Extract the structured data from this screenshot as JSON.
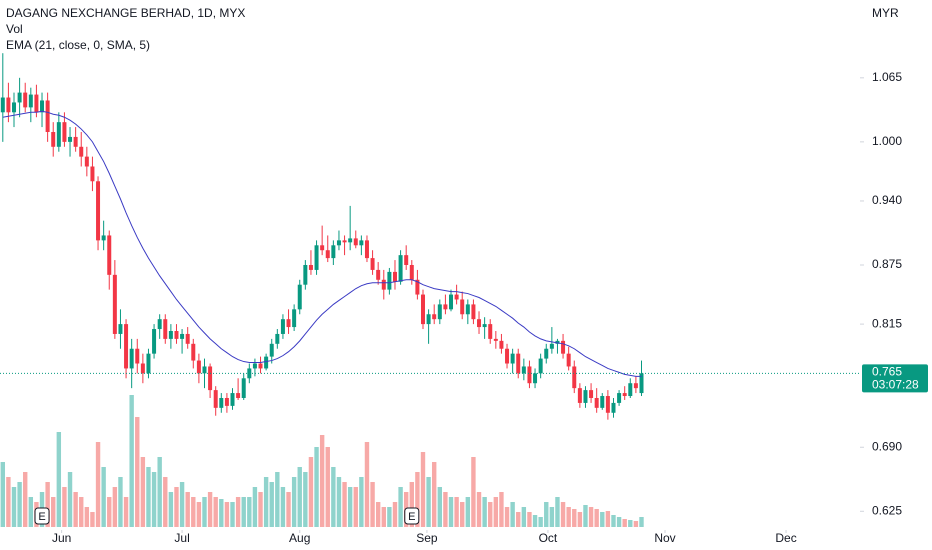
{
  "chart_data": {
    "type": "candlestick",
    "title": "DAGANG NEXCHANGE BERHAD, 1D, MYX",
    "volume_label": "Vol",
    "ema_label": "EMA (21, close, 0, SMA, 5)",
    "currency": "MYR",
    "last_price": 0.765,
    "countdown": "03:07:28",
    "up_color": "#089981",
    "down_color": "#f23645",
    "volume_up_color": "#8fd3cc",
    "volume_down_color": "#f7a9a7",
    "ema_color": "#3b3bc4",
    "ylim": [
      0.606,
      1.144
    ],
    "yticks": [
      0.625,
      {
        "value": 0.69,
        "label": "0.690"
      },
      0.815,
      0.875,
      {
        "value": 0.94,
        "label": "0.940"
      },
      {
        "value": 1.0,
        "label": "1.000"
      },
      1.065
    ],
    "xlim": [
      -0.5,
      153
    ],
    "xticks": [
      {
        "value": 10.5,
        "label": "Jun"
      },
      {
        "value": 32,
        "label": "Jul"
      },
      {
        "value": 53,
        "label": "Aug"
      },
      {
        "value": 75.7,
        "label": "Sep"
      },
      {
        "value": 97.3,
        "label": "Oct"
      },
      {
        "value": 118.2,
        "label": "Nov"
      },
      {
        "value": 139.8,
        "label": "Dec"
      }
    ],
    "vlim": [
      0,
      140
    ],
    "earnings": [
      {
        "index": 7,
        "label": "E"
      },
      {
        "index": 73,
        "label": "E"
      }
    ],
    "ohlc": [
      [
        1.03,
        1.09,
        1.0,
        1.045
      ],
      [
        1.045,
        1.06,
        1.02,
        1.03
      ],
      [
        1.03,
        1.05,
        1.015,
        1.04
      ],
      [
        1.04,
        1.065,
        1.025,
        1.05
      ],
      [
        1.05,
        1.06,
        1.03,
        1.035
      ],
      [
        1.035,
        1.055,
        1.02,
        1.048
      ],
      [
        1.048,
        1.058,
        1.025,
        1.03
      ],
      [
        1.03,
        1.05,
        1.015,
        1.042
      ],
      [
        1.042,
        1.05,
        1.0,
        1.01
      ],
      [
        1.01,
        1.02,
        0.985,
        0.995
      ],
      [
        0.995,
        1.03,
        0.99,
        1.02
      ],
      [
        1.02,
        1.03,
        0.995,
        1.0
      ],
      [
        1.0,
        1.015,
        0.985,
        1.005
      ],
      [
        1.005,
        1.015,
        0.99,
        0.995
      ],
      [
        0.995,
        1.01,
        0.975,
        0.985
      ],
      [
        0.985,
        0.995,
        0.965,
        0.975
      ],
      [
        0.975,
        0.985,
        0.95,
        0.96
      ],
      [
        0.96,
        0.965,
        0.89,
        0.9
      ],
      [
        0.9,
        0.92,
        0.89,
        0.905
      ],
      [
        0.905,
        0.91,
        0.85,
        0.865
      ],
      [
        0.865,
        0.88,
        0.8,
        0.805
      ],
      [
        0.805,
        0.83,
        0.79,
        0.815
      ],
      [
        0.815,
        0.82,
        0.76,
        0.77
      ],
      [
        0.77,
        0.8,
        0.75,
        0.79
      ],
      [
        0.79,
        0.8,
        0.765,
        0.775
      ],
      [
        0.775,
        0.785,
        0.755,
        0.765
      ],
      [
        0.765,
        0.79,
        0.76,
        0.785
      ],
      [
        0.785,
        0.815,
        0.78,
        0.81
      ],
      [
        0.81,
        0.825,
        0.8,
        0.82
      ],
      [
        0.82,
        0.825,
        0.795,
        0.8
      ],
      [
        0.8,
        0.815,
        0.79,
        0.808
      ],
      [
        0.808,
        0.815,
        0.795,
        0.8
      ],
      [
        0.8,
        0.81,
        0.785,
        0.805
      ],
      [
        0.805,
        0.812,
        0.79,
        0.795
      ],
      [
        0.795,
        0.8,
        0.77,
        0.778
      ],
      [
        0.778,
        0.785,
        0.755,
        0.765
      ],
      [
        0.765,
        0.78,
        0.75,
        0.772
      ],
      [
        0.772,
        0.775,
        0.74,
        0.748
      ],
      [
        0.748,
        0.752,
        0.722,
        0.73
      ],
      [
        0.73,
        0.745,
        0.725,
        0.74
      ],
      [
        0.74,
        0.745,
        0.725,
        0.732
      ],
      [
        0.732,
        0.75,
        0.728,
        0.745
      ],
      [
        0.745,
        0.76,
        0.738,
        0.74
      ],
      [
        0.74,
        0.765,
        0.738,
        0.76
      ],
      [
        0.76,
        0.775,
        0.755,
        0.77
      ],
      [
        0.77,
        0.78,
        0.762,
        0.775
      ],
      [
        0.775,
        0.782,
        0.765,
        0.77
      ],
      [
        0.77,
        0.785,
        0.768,
        0.782
      ],
      [
        0.782,
        0.8,
        0.775,
        0.795
      ],
      [
        0.795,
        0.81,
        0.79,
        0.805
      ],
      [
        0.805,
        0.825,
        0.8,
        0.82
      ],
      [
        0.82,
        0.83,
        0.805,
        0.812
      ],
      [
        0.812,
        0.835,
        0.808,
        0.83
      ],
      [
        0.83,
        0.86,
        0.825,
        0.855
      ],
      [
        0.855,
        0.88,
        0.85,
        0.875
      ],
      [
        0.875,
        0.89,
        0.865,
        0.87
      ],
      [
        0.87,
        0.9,
        0.865,
        0.895
      ],
      [
        0.895,
        0.915,
        0.885,
        0.89
      ],
      [
        0.89,
        0.905,
        0.878,
        0.882
      ],
      [
        0.882,
        0.9,
        0.875,
        0.895
      ],
      [
        0.895,
        0.91,
        0.89,
        0.9
      ],
      [
        0.9,
        0.905,
        0.885,
        0.898
      ],
      [
        0.898,
        0.935,
        0.89,
        0.902
      ],
      [
        0.902,
        0.91,
        0.892,
        0.895
      ],
      [
        0.895,
        0.905,
        0.885,
        0.9
      ],
      [
        0.9,
        0.905,
        0.878,
        0.882
      ],
      [
        0.882,
        0.89,
        0.865,
        0.87
      ],
      [
        0.87,
        0.878,
        0.855,
        0.86
      ],
      [
        0.86,
        0.87,
        0.84,
        0.85
      ],
      [
        0.85,
        0.872,
        0.845,
        0.868
      ],
      [
        0.868,
        0.88,
        0.85,
        0.858
      ],
      [
        0.858,
        0.89,
        0.855,
        0.885
      ],
      [
        0.885,
        0.895,
        0.87,
        0.875
      ],
      [
        0.875,
        0.88,
        0.855,
        0.86
      ],
      [
        0.86,
        0.87,
        0.84,
        0.845
      ],
      [
        0.845,
        0.85,
        0.81,
        0.815
      ],
      [
        0.815,
        0.83,
        0.795,
        0.825
      ],
      [
        0.825,
        0.835,
        0.815,
        0.82
      ],
      [
        0.82,
        0.84,
        0.815,
        0.835
      ],
      [
        0.835,
        0.845,
        0.825,
        0.83
      ],
      [
        0.83,
        0.85,
        0.828,
        0.845
      ],
      [
        0.845,
        0.855,
        0.835,
        0.84
      ],
      [
        0.84,
        0.848,
        0.82,
        0.825
      ],
      [
        0.825,
        0.84,
        0.815,
        0.835
      ],
      [
        0.835,
        0.84,
        0.815,
        0.82
      ],
      [
        0.82,
        0.828,
        0.805,
        0.812
      ],
      [
        0.812,
        0.822,
        0.8,
        0.815
      ],
      [
        0.815,
        0.82,
        0.795,
        0.8
      ],
      [
        0.8,
        0.808,
        0.79,
        0.798
      ],
      [
        0.798,
        0.805,
        0.785,
        0.79
      ],
      [
        0.79,
        0.795,
        0.77,
        0.775
      ],
      [
        0.775,
        0.79,
        0.765,
        0.785
      ],
      [
        0.785,
        0.79,
        0.76,
        0.765
      ],
      [
        0.765,
        0.78,
        0.758,
        0.772
      ],
      [
        0.772,
        0.778,
        0.75,
        0.755
      ],
      [
        0.755,
        0.77,
        0.75,
        0.765
      ],
      [
        0.765,
        0.785,
        0.76,
        0.78
      ],
      [
        0.78,
        0.795,
        0.775,
        0.79
      ],
      [
        0.79,
        0.812,
        0.785,
        0.795
      ],
      [
        0.795,
        0.8,
        0.785,
        0.798
      ],
      [
        0.798,
        0.805,
        0.78,
        0.785
      ],
      [
        0.785,
        0.792,
        0.768,
        0.772
      ],
      [
        0.772,
        0.778,
        0.745,
        0.75
      ],
      [
        0.75,
        0.755,
        0.73,
        0.735
      ],
      [
        0.735,
        0.752,
        0.73,
        0.748
      ],
      [
        0.748,
        0.755,
        0.735,
        0.74
      ],
      [
        0.74,
        0.75,
        0.725,
        0.73
      ],
      [
        0.73,
        0.745,
        0.728,
        0.742
      ],
      [
        0.742,
        0.748,
        0.718,
        0.725
      ],
      [
        0.725,
        0.74,
        0.72,
        0.735
      ],
      [
        0.735,
        0.748,
        0.732,
        0.745
      ],
      [
        0.745,
        0.752,
        0.738,
        0.742
      ],
      [
        0.742,
        0.76,
        0.74,
        0.755
      ],
      [
        0.755,
        0.762,
        0.745,
        0.75
      ],
      [
        0.745,
        0.778,
        0.742,
        0.765
      ]
    ],
    "volume": [
      65,
      50,
      40,
      45,
      55,
      30,
      25,
      35,
      45,
      30,
      95,
      40,
      55,
      35,
      30,
      20,
      15,
      85,
      60,
      30,
      40,
      50,
      30,
      132,
      110,
      70,
      60,
      55,
      70,
      50,
      35,
      40,
      45,
      35,
      30,
      25,
      30,
      35,
      30,
      28,
      25,
      25,
      30,
      30,
      30,
      40,
      35,
      50,
      45,
      55,
      40,
      35,
      50,
      60,
      55,
      70,
      80,
      92,
      80,
      60,
      50,
      45,
      40,
      40,
      50,
      85,
      45,
      25,
      20,
      20,
      25,
      40,
      35,
      45,
      55,
      75,
      50,
      65,
      40,
      35,
      30,
      30,
      25,
      30,
      70,
      35,
      30,
      25,
      30,
      35,
      20,
      25,
      15,
      20,
      15,
      12,
      10,
      25,
      20,
      30,
      25,
      20,
      18,
      15,
      22,
      20,
      18,
      15,
      16,
      12,
      10,
      8,
      7,
      6,
      10
    ],
    "ema": [
      1.025,
      1.026,
      1.027,
      1.028,
      1.029,
      1.03,
      1.03,
      1.031,
      1.03,
      1.028,
      1.027,
      1.025,
      1.022,
      1.018,
      1.013,
      1.007,
      1.0,
      0.99,
      0.98,
      0.968,
      0.955,
      0.942,
      0.928,
      0.915,
      0.903,
      0.892,
      0.882,
      0.873,
      0.864,
      0.856,
      0.848,
      0.84,
      0.833,
      0.826,
      0.819,
      0.812,
      0.806,
      0.8,
      0.795,
      0.79,
      0.786,
      0.782,
      0.779,
      0.777,
      0.776,
      0.776,
      0.776,
      0.777,
      0.778,
      0.78,
      0.783,
      0.787,
      0.792,
      0.798,
      0.805,
      0.812,
      0.819,
      0.825,
      0.83,
      0.835,
      0.839,
      0.843,
      0.847,
      0.851,
      0.854,
      0.856,
      0.857,
      0.857,
      0.857,
      0.857,
      0.858,
      0.859,
      0.86,
      0.86,
      0.858,
      0.855,
      0.853,
      0.851,
      0.85,
      0.849,
      0.848,
      0.848,
      0.847,
      0.846,
      0.844,
      0.842,
      0.839,
      0.836,
      0.833,
      0.829,
      0.825,
      0.821,
      0.816,
      0.812,
      0.807,
      0.803,
      0.8,
      0.798,
      0.797,
      0.796,
      0.795,
      0.793,
      0.79,
      0.786,
      0.782,
      0.779,
      0.776,
      0.773,
      0.77,
      0.768,
      0.766,
      0.764,
      0.763,
      0.762,
      0.762
    ]
  }
}
